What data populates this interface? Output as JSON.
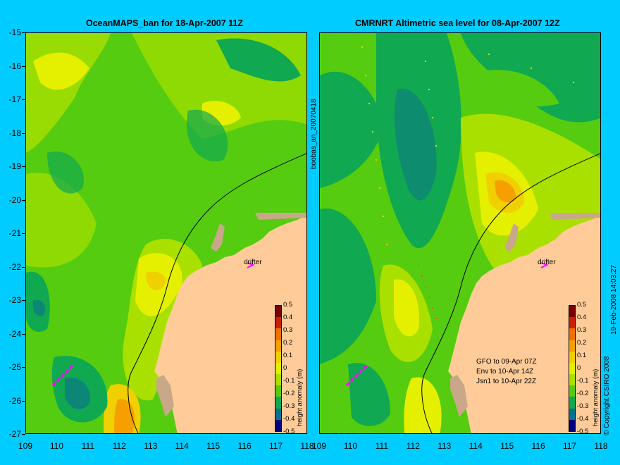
{
  "left_panel": {
    "title": "OceanMAPS_ban for 18-Apr-2007 11Z",
    "annotation": "drifter"
  },
  "right_panel": {
    "title": "CMRNRT Altimetric sea level  for 08-Apr-2007 12Z",
    "annotation": "drifter",
    "legend_lines": [
      "GFO to 09-Apr 07Z",
      "Env to 10-Apr 14Z",
      "Jsn1 to 10-Apr 22Z"
    ]
  },
  "side_labels": {
    "middle": "boobas_an_20070418",
    "right_timestamp": "19-Feb-2008 14:03:27",
    "copyright": "© Copyright CSIRO 2008"
  },
  "axes": {
    "lat_ticks": [
      "-15",
      "-16",
      "-17",
      "-18",
      "-19",
      "-20",
      "-21",
      "-22",
      "-23",
      "-24",
      "-25",
      "-26",
      "-27"
    ],
    "lon_ticks": [
      "109",
      "110",
      "111",
      "112",
      "113",
      "114",
      "115",
      "116",
      "117",
      "118"
    ],
    "lat_range": [
      -27,
      -15
    ],
    "lon_range": [
      109,
      118
    ]
  },
  "colorbar": {
    "label": "height anomaly (m)",
    "ticks": [
      "0.5",
      "0.4",
      "0.3",
      "0.2",
      "0.1",
      "0",
      "-0.1",
      "-0.2",
      "-0.3",
      "-0.4",
      "-0.5"
    ],
    "colors": [
      "#7a0000",
      "#c82000",
      "#f07000",
      "#f5a000",
      "#f0d000",
      "#e5f000",
      "#aae000",
      "#55cc10",
      "#10a850",
      "#0a7090",
      "#000080"
    ]
  },
  "map_colors": {
    "land": "#ffcc99",
    "island": "#c8a888",
    "coastline": "#000000",
    "drifter_marker": "#ff00ff"
  }
}
